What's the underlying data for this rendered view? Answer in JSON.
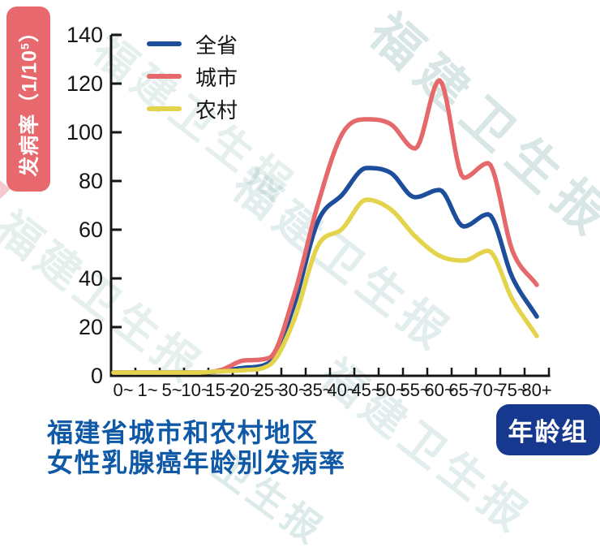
{
  "y_axis_badge": {
    "text_main": "发病率（1/10",
    "sup": "5",
    "close": "）"
  },
  "x_axis_badge": {
    "label": "年龄组"
  },
  "title": {
    "line1": "福建省城市和农村地区",
    "line2": "女性乳腺癌年龄别发病率"
  },
  "watermark": {
    "items": [
      {
        "text": "福建卫生报"
      },
      {
        "text": "福建卫生报"
      },
      {
        "text": "福建卫生报"
      },
      {
        "text": "福建卫生报"
      },
      {
        "text": "卫生报"
      },
      {
        "text": "报"
      },
      {
        "text": "福建卫生报"
      }
    ]
  },
  "chart_data": {
    "type": "line",
    "title": "福建省城市和农村地区女性乳腺癌年龄别发病率",
    "xlabel": "年龄组",
    "ylabel": "发病率（1/10⁵）",
    "categories": [
      "0~",
      "1~",
      "5~",
      "10~",
      "15~",
      "20~",
      "25~",
      "30~",
      "35~",
      "40~",
      "45~",
      "50~",
      "55~",
      "60~",
      "65~",
      "70~",
      "75~",
      "80+"
    ],
    "series": [
      {
        "name": "全省",
        "color": "#1d4e9c",
        "values": [
          1,
          1,
          1,
          1,
          1.5,
          3,
          5,
          28,
          63,
          74,
          85,
          83,
          73,
          76,
          61,
          66,
          40,
          24
        ]
      },
      {
        "name": "城市",
        "color": "#e5696b",
        "values": [
          1,
          1,
          1,
          1,
          2,
          6,
          7,
          32,
          70,
          99,
          105,
          103,
          93,
          121,
          81,
          87,
          51,
          37
        ]
      },
      {
        "name": "农村",
        "color": "#e3d44c",
        "values": [
          1,
          1,
          1,
          1,
          1.5,
          2,
          4,
          22,
          53,
          60,
          72,
          68,
          57,
          49,
          47,
          51,
          31,
          16
        ]
      }
    ],
    "ylim": [
      0,
      140
    ],
    "yticks": [
      0,
      20,
      40,
      60,
      80,
      100,
      120,
      140
    ],
    "grid": false,
    "legend_position": "top-left-inside"
  }
}
